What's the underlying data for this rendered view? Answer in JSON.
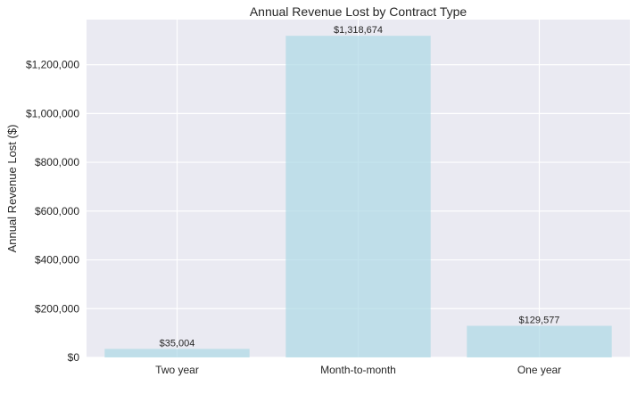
{
  "chart_data": {
    "type": "bar",
    "title": "Annual Revenue Lost by Contract Type",
    "xlabel": "",
    "ylabel": "Annual Revenue Lost ($)",
    "categories": [
      "Two year",
      "Month-to-month",
      "One year"
    ],
    "values": [
      35004,
      1318674,
      129577
    ],
    "data_labels": [
      "$35,004",
      "$1,318,674",
      "$129,577"
    ],
    "ylim": [
      0,
      1385000
    ],
    "yticks": [
      0,
      200000,
      400000,
      600000,
      800000,
      1000000,
      1200000
    ],
    "ytick_labels": [
      "$0",
      "$200,000",
      "$400,000",
      "$600,000",
      "$800,000",
      "$1,000,000",
      "$1,200,000"
    ],
    "grid": true,
    "legend": "none"
  },
  "colors": {
    "plot_background": "#eaeaf2",
    "grid": "#ffffff",
    "bar": "#add8e6",
    "text": "#262626"
  }
}
